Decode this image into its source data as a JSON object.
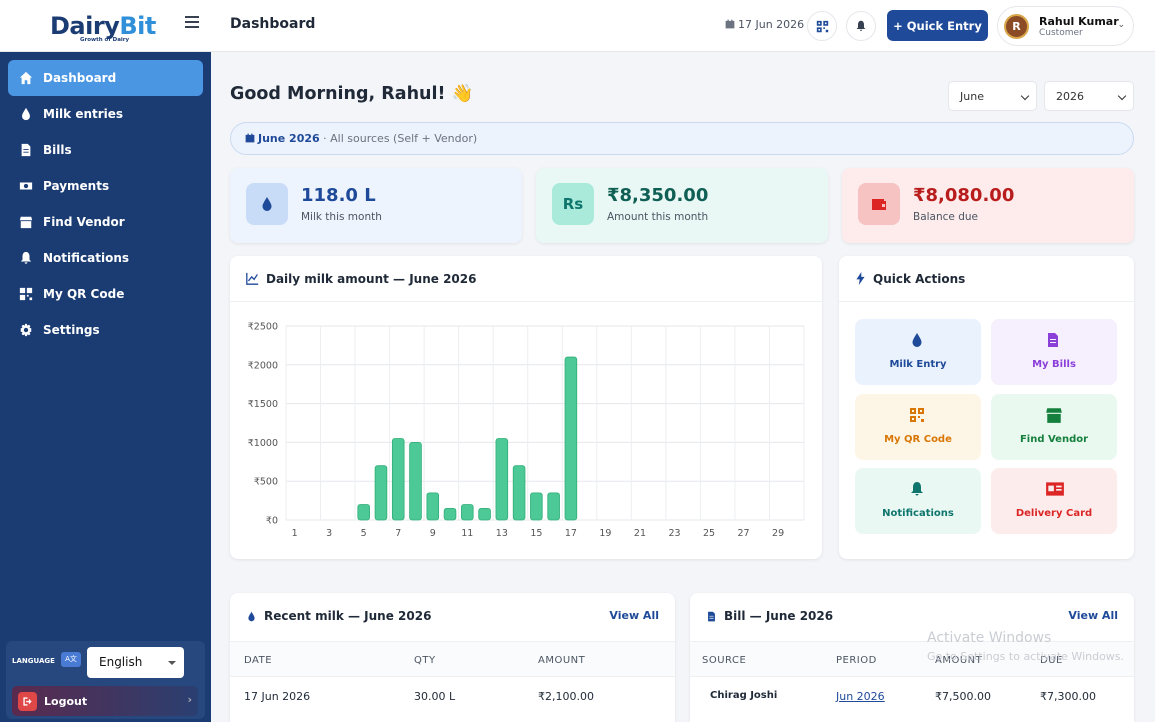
{
  "brand": {
    "logo_part1": "Dairy",
    "logo_part2": "Bit",
    "tagline": "Growth of Dairy"
  },
  "sidebar": {
    "items": [
      {
        "label": "Dashboard",
        "icon": "home-icon",
        "active": true
      },
      {
        "label": "Milk entries",
        "icon": "droplet-icon"
      },
      {
        "label": "Bills",
        "icon": "file-icon"
      },
      {
        "label": "Payments",
        "icon": "money-icon"
      },
      {
        "label": "Find Vendor",
        "icon": "store-icon"
      },
      {
        "label": "Notifications",
        "icon": "bell-icon"
      },
      {
        "label": "My QR Code",
        "icon": "qr-icon"
      },
      {
        "label": "Settings",
        "icon": "gear-icon"
      }
    ],
    "language_label": "LANGUAGE",
    "language_value": "English",
    "logout_label": "Logout"
  },
  "header": {
    "title": "Dashboard",
    "date": "17 Jun 2026",
    "quick_entry_label": "+ Quick Entry",
    "user": {
      "initial": "R",
      "name": "Rahul Kumar",
      "role": "Customer"
    }
  },
  "greeting": "Good Morning, Rahul! 👋",
  "filters": {
    "month": "June",
    "year": "2026",
    "period_label": "June 2026",
    "source_label": " · All sources (Self + Vendor)"
  },
  "stats": [
    {
      "value": "118.0 L",
      "label": "Milk this month",
      "color": "#1f4a99"
    },
    {
      "value": "₹8,350.00",
      "label": "Amount this month",
      "color": "#0f766e"
    },
    {
      "value": "₹8,080.00",
      "label": "Balance due",
      "color": "#b91c1c"
    }
  ],
  "chart_title": "Daily milk amount — June 2026",
  "chart_data": {
    "type": "bar",
    "categories": [
      "1",
      "2",
      "3",
      "4",
      "5",
      "6",
      "7",
      "8",
      "9",
      "10",
      "11",
      "12",
      "13",
      "14",
      "15",
      "16",
      "17",
      "18",
      "19",
      "20",
      "21",
      "22",
      "23",
      "24",
      "25",
      "26",
      "27",
      "28",
      "29",
      "30"
    ],
    "tick_labels": [
      "1",
      "3",
      "5",
      "7",
      "9",
      "11",
      "13",
      "15",
      "17",
      "19",
      "21",
      "23",
      "25",
      "27",
      "29"
    ],
    "values": [
      0,
      0,
      0,
      0,
      200,
      700,
      1050,
      1000,
      350,
      150,
      200,
      150,
      1050,
      700,
      350,
      350,
      2100,
      0,
      0,
      0,
      0,
      0,
      0,
      0,
      0,
      0,
      0,
      0,
      0,
      0
    ],
    "y_ticks": [
      "₹0",
      "₹500",
      "₹1000",
      "₹1500",
      "₹2000",
      "₹2500"
    ],
    "ylim": [
      0,
      2500
    ],
    "grid": true,
    "bar_color": "#4cc996"
  },
  "quick_actions": {
    "title": "Quick Actions",
    "items": [
      {
        "label": "Milk Entry",
        "icon": "droplet-icon",
        "bg": "#eaf2fd",
        "color": "#1f4a99"
      },
      {
        "label": "My Bills",
        "icon": "file-icon",
        "bg": "#f6effd",
        "color": "#8b3fd9"
      },
      {
        "label": "My QR Code",
        "icon": "qr-icon",
        "bg": "#fdf6e6",
        "color": "#d97706"
      },
      {
        "label": "Find Vendor",
        "icon": "store-icon",
        "bg": "#eaf9ef",
        "color": "#15803d"
      },
      {
        "label": "Notifications",
        "icon": "bell-icon",
        "bg": "#e9f8f3",
        "color": "#0f766e"
      },
      {
        "label": "Delivery Card",
        "icon": "card-icon",
        "bg": "#fdecec",
        "color": "#dc2626"
      }
    ]
  },
  "recent_milk": {
    "title": "Recent milk — June 2026",
    "view_all": "View All",
    "columns": [
      "DATE",
      "QTY",
      "AMOUNT"
    ],
    "rows": [
      [
        "17 Jun 2026",
        "30.00 L",
        "₹2,100.00"
      ]
    ]
  },
  "bill": {
    "title": "Bill — June 2026",
    "view_all": "View All",
    "columns": [
      "SOURCE",
      "PERIOD",
      "AMOUNT",
      "DUE"
    ],
    "rows": [
      [
        "Chirag Joshi",
        "Jun 2026",
        "₹7,500.00",
        "₹7,300.00"
      ]
    ]
  },
  "watermark": {
    "line1": "Activate Windows",
    "line2": "Go to Settings to activate Windows."
  }
}
